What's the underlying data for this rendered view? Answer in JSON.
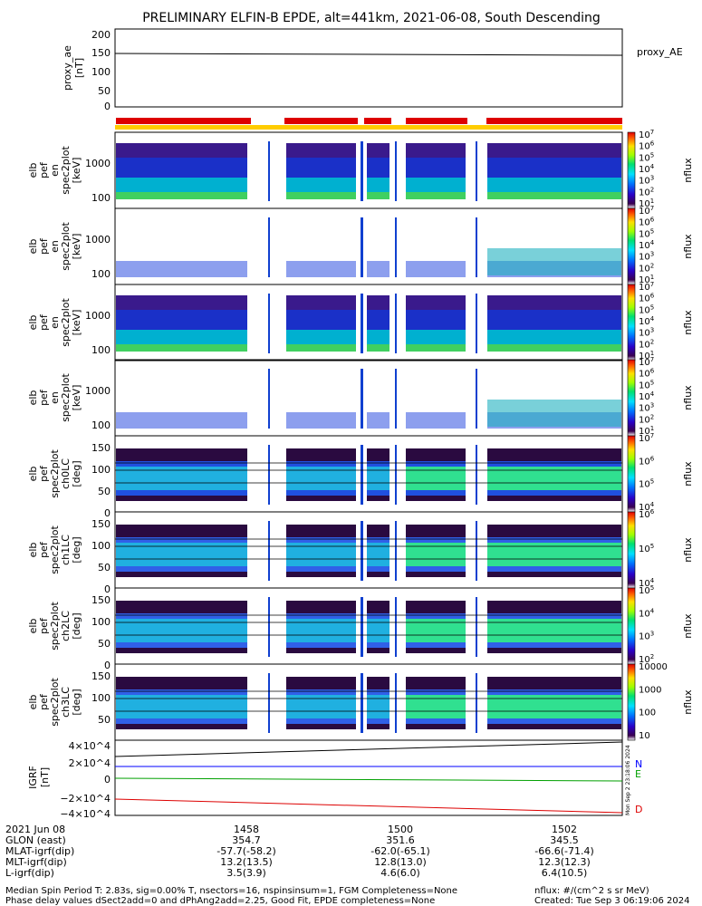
{
  "title": "PRELIMINARY ELFIN-B EPDE, alt=441km, 2021-06-08, South Descending",
  "chart_data": [
    {
      "type": "line",
      "ylabel": [
        "proxy_ae",
        "[nT]"
      ],
      "yticks": [
        "200",
        "150",
        "100",
        "50",
        "0"
      ],
      "ylim": [
        0,
        200
      ],
      "series": [
        {
          "name": "proxy_AE",
          "x": [
            "14:56",
            "15:03"
          ],
          "values": [
            145,
            140
          ]
        }
      ]
    },
    {
      "type": "heatmap",
      "panels": [
        {
          "ylabel": [
            "elb",
            "pef",
            "en",
            "spec2plot",
            "[keV]"
          ],
          "yticks": [
            "1000",
            "100"
          ],
          "cbar_ticks": [
            "10^7",
            "10^6",
            "10^5",
            "10^4",
            "10^3",
            "10^2",
            "10^1"
          ],
          "cbar_label": "nflux"
        },
        {
          "ylabel": [
            "elb",
            "pef",
            "en",
            "spec2plot",
            "[keV]"
          ],
          "yticks": [
            "1000",
            "100"
          ],
          "cbar_ticks": [
            "10^7",
            "10^6",
            "10^5",
            "10^4",
            "10^3",
            "10^2",
            "10^1"
          ],
          "cbar_label": "nflux"
        },
        {
          "ylabel": [
            "elb",
            "pef",
            "en",
            "spec2plot",
            "[keV]"
          ],
          "yticks": [
            "1000",
            "100"
          ],
          "cbar_ticks": [
            "10^7",
            "10^6",
            "10^5",
            "10^4",
            "10^3",
            "10^2",
            "10^1"
          ],
          "cbar_label": "nflux"
        },
        {
          "ylabel": [
            "elb",
            "pef",
            "en",
            "spec2plot",
            "[keV]"
          ],
          "yticks": [
            "1000",
            "100"
          ],
          "cbar_ticks": [
            "10^7",
            "10^6",
            "10^5",
            "10^4",
            "10^3",
            "10^2",
            "10^1"
          ],
          "cbar_label": "nflux"
        },
        {
          "ylabel": [
            "elb",
            "pef",
            "spec2plot",
            "ch0LC",
            "[deg]"
          ],
          "yticks": [
            "150",
            "100",
            "50",
            "0"
          ],
          "cbar_ticks": [
            "10^7",
            "10^6",
            "10^5",
            "10^4"
          ],
          "cbar_label": "nflux"
        },
        {
          "ylabel": [
            "elb",
            "pef",
            "spec2plot",
            "ch1LC",
            "[deg]"
          ],
          "yticks": [
            "150",
            "100",
            "50",
            "0"
          ],
          "cbar_ticks": [
            "10^6",
            "10^5",
            "10^4"
          ],
          "cbar_label": "nflux"
        },
        {
          "ylabel": [
            "elb",
            "pef",
            "spec2plot",
            "ch2LC",
            "[deg]"
          ],
          "yticks": [
            "150",
            "100",
            "50",
            "0"
          ],
          "cbar_ticks": [
            "10^5",
            "10^4",
            "10^3",
            "10^2"
          ],
          "cbar_label": "nflux"
        },
        {
          "ylabel": [
            "elb",
            "pef",
            "spec2plot",
            "ch3LC",
            "[deg]"
          ],
          "yticks": [
            "150",
            "100",
            "50"
          ],
          "cbar_ticks": [
            "10000",
            "1000",
            "100",
            "10"
          ],
          "cbar_label": "nflux"
        }
      ]
    },
    {
      "type": "line",
      "ylabel": [
        "IGRF",
        "[nT]"
      ],
      "yticks": [
        "4×10^4",
        "2×10^4",
        "0",
        "−2×10^4",
        "−4×10^4"
      ],
      "ylim": [
        -40000,
        40000
      ],
      "series": [
        {
          "name": "N",
          "color": "#0000ff",
          "x": [
            "14:56",
            "15:03"
          ],
          "values": [
            28000,
            31000
          ]
        },
        {
          "name": "E",
          "color": "#00a000",
          "x": [
            "14:56",
            "15:03"
          ],
          "values": [
            2500,
            -1500
          ]
        },
        {
          "name": "D",
          "color": "#dd0000",
          "x": [
            "14:56",
            "15:03"
          ],
          "values": [
            -22000,
            -34000
          ]
        }
      ],
      "side_label": "Mon Sep 2 23:18:06 2024"
    }
  ],
  "orbit_labels": {
    "rows": [
      "2021 Jun 08",
      "GLON (east)",
      "MLAT-igrf(dip)",
      "MLT-igrf(dip)",
      "L-igrf(dip)"
    ],
    "columns": [
      {
        "time": "1458",
        "values": [
          "354.7",
          "-57.7(-58.2)",
          "13.2(13.5)",
          "3.5(3.9)"
        ]
      },
      {
        "time": "1500",
        "values": [
          "351.6",
          "-62.0(-65.1)",
          "12.8(13.0)",
          "4.6(6.0)"
        ]
      },
      {
        "time": "1502",
        "values": [
          "345.5",
          "-66.6(-71.4)",
          "12.3(12.3)",
          "6.4(10.5)"
        ]
      }
    ]
  },
  "footer": {
    "line1": "Median Spin Period T: 2.83s, sig=0.00% T, nsectors=16, nspinsinsum=1, FGM Completeness=None",
    "line2": "Phase delay values dSect2add=0 and dPhAng2add=2.25, Good Fit, EPDE completeness=None",
    "right1": "nflux: #/(cm^2 s sr MeV)",
    "right2": "Created: Tue Sep  3 06:19:06 2024"
  }
}
